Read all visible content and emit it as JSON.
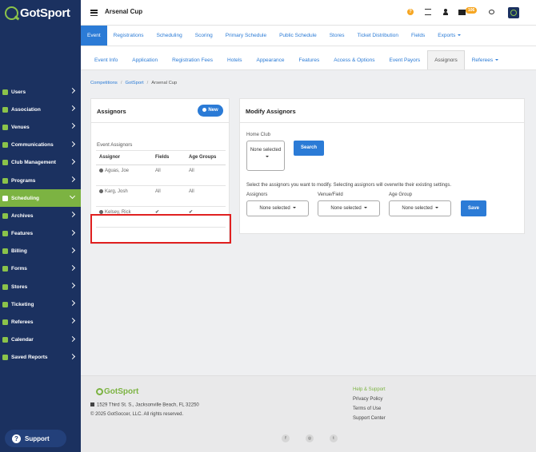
{
  "app": {
    "logo_text": "GotSport",
    "event_title": "Arsenal Cup",
    "notif_count": "106",
    "support_label": "Support"
  },
  "sidebar": {
    "items": [
      {
        "label": "Users",
        "icon": "users-icon"
      },
      {
        "label": "Association",
        "icon": "association-icon"
      },
      {
        "label": "Venues",
        "icon": "venues-icon"
      },
      {
        "label": "Communications",
        "icon": "communications-icon"
      },
      {
        "label": "Club Management",
        "icon": "club-icon"
      },
      {
        "label": "Programs",
        "icon": "programs-icon"
      },
      {
        "label": "Scheduling",
        "icon": "scheduling-icon",
        "active": true
      },
      {
        "label": "Archives",
        "icon": "archives-icon"
      },
      {
        "label": "Features",
        "icon": "features-icon"
      },
      {
        "label": "Billing",
        "icon": "billing-icon"
      },
      {
        "label": "Forms",
        "icon": "forms-icon"
      },
      {
        "label": "Stores",
        "icon": "stores-icon"
      },
      {
        "label": "Ticketing",
        "icon": "ticketing-icon"
      },
      {
        "label": "Referees",
        "icon": "referees-icon"
      },
      {
        "label": "Calendar",
        "icon": "calendar-icon"
      },
      {
        "label": "Saved Reports",
        "icon": "reports-icon"
      }
    ]
  },
  "tabs_main": [
    "Event",
    "Registrations",
    "Scheduling",
    "Scoring",
    "Primary Schedule",
    "Public Schedule",
    "Stores",
    "Ticket Distribution",
    "Fields",
    "Exports"
  ],
  "tabs_sub": [
    "Event Info",
    "Application",
    "Registration Fees",
    "Hotels",
    "Appearance",
    "Features",
    "Access & Options",
    "Event Payors",
    "Assignors",
    "Referees"
  ],
  "breadcrumb": [
    "Competitions",
    "GotSport",
    "Arsenal Cup"
  ],
  "assignors_panel": {
    "title": "Assignors",
    "new_label": "New",
    "sub_label": "Event Assignors",
    "columns": [
      "Assignor",
      "Fields",
      "Age Groups"
    ],
    "rows": [
      {
        "name": "Aguas, Joe",
        "fields": "All",
        "age_groups": "All"
      },
      {
        "name": "Karg, Josh",
        "fields": "All",
        "age_groups": "All"
      },
      {
        "name": "Kelsey, Rick",
        "fields": "✔",
        "age_groups": "✔"
      }
    ]
  },
  "modify_panel": {
    "title": "Modify Assignors",
    "home_club_label": "Home Club",
    "home_club_value": "None selected",
    "search_label": "Search",
    "instructions": "Select the assignors you want to modify. Selecting assignors will overwrite their existing settings.",
    "assignors_label": "Assignors",
    "venue_label": "Venue/Field",
    "age_label": "Age Group",
    "assignors_value": "None selected",
    "venue_value": "None selected",
    "age_value": "None selected",
    "save_label": "Save"
  },
  "footer": {
    "logo": "GotSport",
    "address": "1529 Third St. S., Jacksonville Beach, FL 32250",
    "copyright": "© 2025 GotSoccer, LLC. All rights reserved.",
    "links": [
      "Help & Support",
      "Privacy Policy",
      "Terms of Use",
      "Support Center"
    ],
    "social": [
      "f",
      "◎",
      "t"
    ]
  },
  "colors": {
    "sidebar": "#1b3160",
    "accent": "#2b7bd6",
    "green": "#7cb342",
    "highlight": "#e02020"
  }
}
